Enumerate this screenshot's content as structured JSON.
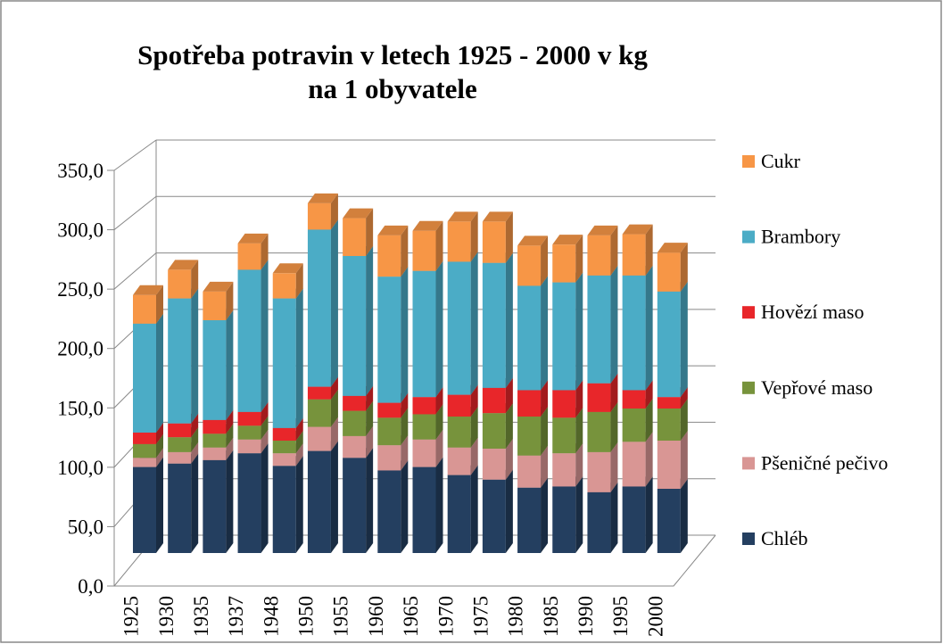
{
  "chart_data": {
    "type": "bar3d_stacked",
    "title": [
      "Spotřeba potravin v letech 1925 - 2000 v kg",
      "na 1 obyvatele"
    ],
    "categories": [
      "1925",
      "1930",
      "1935",
      "1937",
      "1948",
      "1950",
      "1955",
      "1960",
      "1965",
      "1970",
      "1975",
      "1980",
      "1985",
      "1990",
      "1995",
      "2000"
    ],
    "series": [
      {
        "name": "Chléb",
        "color": "#243f60",
        "values": [
          75,
          78,
          81,
          87,
          76,
          89,
          83,
          72,
          75,
          68,
          64,
          57,
          58,
          53,
          58,
          56
        ]
      },
      {
        "name": "Pšeničné pečivo",
        "color": "#d99694",
        "values": [
          8,
          10,
          11,
          12,
          11,
          21,
          19,
          22,
          24,
          24,
          27,
          28,
          29,
          35,
          39,
          42
        ]
      },
      {
        "name": "Vepřové maso",
        "color": "#77933c",
        "values": [
          12,
          13,
          12,
          12,
          11,
          24,
          22,
          24,
          22,
          27,
          31,
          34,
          31,
          35,
          29,
          28
        ]
      },
      {
        "name": "Hovězí maso",
        "color": "#e8262a",
        "values": [
          10,
          12,
          12,
          12,
          11,
          11,
          13,
          13,
          15,
          19,
          22,
          23,
          24,
          25,
          16,
          10
        ]
      },
      {
        "name": "Brambory",
        "color": "#4bacc6",
        "values": [
          95,
          109,
          87,
          124,
          113,
          137,
          122,
          110,
          110,
          116,
          109,
          91,
          94,
          94,
          100,
          92
        ]
      },
      {
        "name": "Cukr",
        "color": "#f79646",
        "values": [
          25,
          25,
          25,
          23,
          22,
          23,
          33,
          36,
          35,
          35,
          36,
          35,
          33,
          35,
          36,
          34
        ]
      }
    ],
    "ylim": [
      0,
      350
    ],
    "yticks": [
      {
        "value": 0,
        "label": "0,0"
      },
      {
        "value": 50,
        "label": "50,0"
      },
      {
        "value": 100,
        "label": "100,0"
      },
      {
        "value": 150,
        "label": "150,0"
      },
      {
        "value": 200,
        "label": "200,0"
      },
      {
        "value": 250,
        "label": "250,0"
      },
      {
        "value": 300,
        "label": "300,0"
      },
      {
        "value": 350,
        "label": "350,0"
      }
    ],
    "grid": true,
    "legend": "right"
  }
}
